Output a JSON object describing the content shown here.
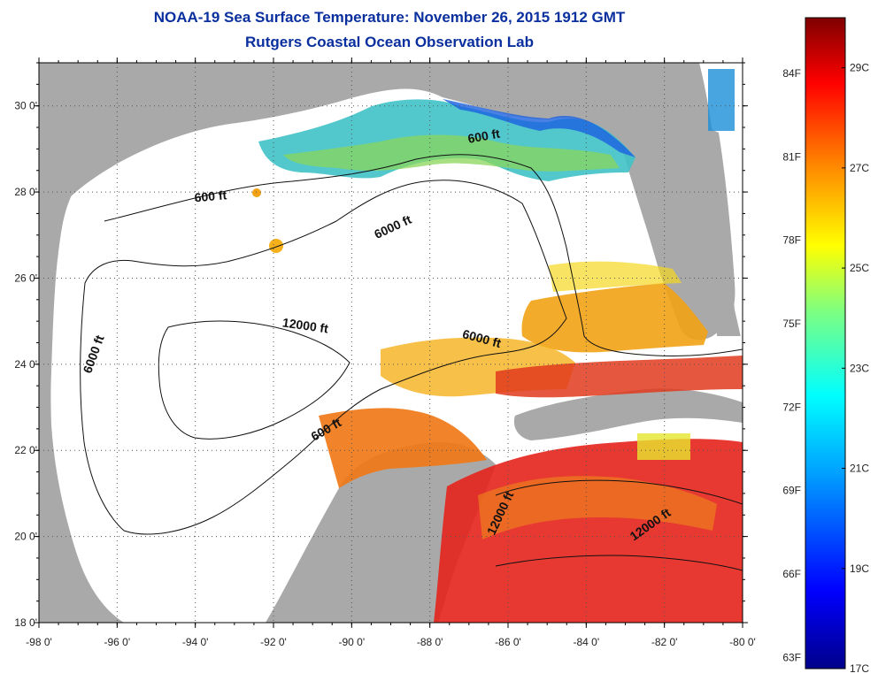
{
  "header": {
    "title": "NOAA-19 Sea Surface Temperature:  November 26, 2015 1912 GMT",
    "subtitle": "Rutgers Coastal Ocean Observation Lab"
  },
  "map": {
    "lon_range": [
      -98,
      -80
    ],
    "lat_range": [
      18,
      31
    ],
    "x_ticks": [
      {
        "lon": -98,
        "label": "-98 0'"
      },
      {
        "lon": -96,
        "label": "-96 0'"
      },
      {
        "lon": -94,
        "label": "-94 0'"
      },
      {
        "lon": -92,
        "label": "-92 0'"
      },
      {
        "lon": -90,
        "label": "-90 0'"
      },
      {
        "lon": -88,
        "label": "-88 0'"
      },
      {
        "lon": -86,
        "label": "-86 0'"
      },
      {
        "lon": -84,
        "label": "-84 0'"
      },
      {
        "lon": -82,
        "label": "-82 0'"
      },
      {
        "lon": -80,
        "label": "-80 0'"
      }
    ],
    "y_ticks": [
      {
        "lat": 18,
        "label": "18 0'"
      },
      {
        "lat": 20,
        "label": "20 0'"
      },
      {
        "lat": 22,
        "label": "22 0'"
      },
      {
        "lat": 24,
        "label": "24 0'"
      },
      {
        "lat": 26,
        "label": "26 0'"
      },
      {
        "lat": 28,
        "label": "28 0'"
      },
      {
        "lat": 30,
        "label": "30 0'"
      }
    ],
    "grid": "dotted",
    "land_color": "#a9a9a9",
    "ocean_nodata_color": "#ffffff",
    "contour_labels": [
      {
        "text": "600 ft",
        "lon": -93.6,
        "lat": 27.8,
        "angle": -5
      },
      {
        "text": "6000 ft",
        "lon": -88.9,
        "lat": 27.1,
        "angle": -25
      },
      {
        "text": "600 ft",
        "lon": -86.6,
        "lat": 29.2,
        "angle": -10
      },
      {
        "text": "12000 ft",
        "lon": -91.2,
        "lat": 24.8,
        "angle": 8
      },
      {
        "text": "6000 ft",
        "lon": -96.5,
        "lat": 24.2,
        "angle": -70
      },
      {
        "text": "6000 ft",
        "lon": -86.7,
        "lat": 24.5,
        "angle": 15
      },
      {
        "text": "600 ft",
        "lon": -90.6,
        "lat": 22.4,
        "angle": -30
      },
      {
        "text": "12000 ft",
        "lon": -86.1,
        "lat": 20.5,
        "angle": -65
      },
      {
        "text": "12000 ft",
        "lon": -82.3,
        "lat": 20.2,
        "angle": -35
      }
    ]
  },
  "colorbar": {
    "min_c": 17,
    "max_c": 30,
    "labels_f": [
      "84F",
      "81F",
      "78F",
      "75F",
      "72F",
      "69F",
      "66F",
      "63F"
    ],
    "labels_c": [
      "29C",
      "27C",
      "25C",
      "23C",
      "21C",
      "19C",
      "17C"
    ],
    "f_values": [
      84,
      81,
      78,
      75,
      72,
      69,
      66,
      63
    ],
    "c_values": [
      29,
      27,
      25,
      23,
      21,
      19,
      17
    ]
  }
}
